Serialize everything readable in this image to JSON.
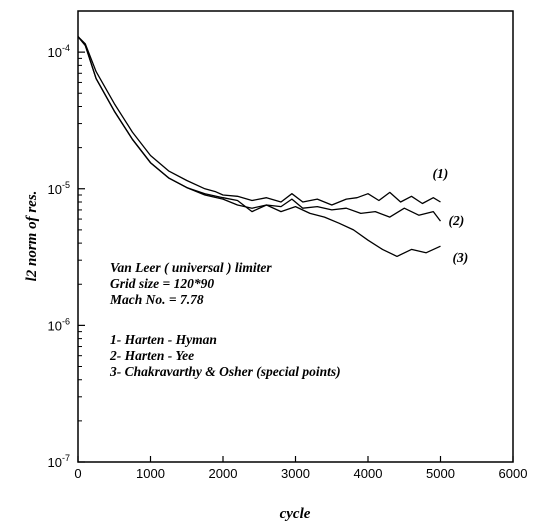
{
  "chart_data": {
    "type": "line",
    "xlabel": "cycle",
    "ylabel": "l2 norm of res.",
    "xlim": [
      0,
      6000
    ],
    "ylim": [
      1e-07,
      0.0002
    ],
    "yscale": "log",
    "x_ticks": [
      0,
      1000,
      2000,
      3000,
      4000,
      5000,
      6000
    ],
    "x_tick_labels": [
      "0",
      "1000",
      "2000",
      "3000",
      "4000",
      "5000",
      "6000"
    ],
    "y_ticks": [
      1e-07,
      1e-06,
      1e-05,
      0.0001
    ],
    "y_tick_labels": [
      {
        "base": "10",
        "exp": "-7"
      },
      {
        "base": "10",
        "exp": "-6"
      },
      {
        "base": "10",
        "exp": "-5"
      },
      {
        "base": "10",
        "exp": "-4"
      }
    ],
    "annotations": [
      "Van Leer ( universal ) limiter",
      "Grid size = 120*90",
      "Mach No. = 7.78",
      "1- Harten - Hyman",
      "2- Harten - Yee",
      "3- Chakravarthy & Osher (special points)"
    ],
    "series": [
      {
        "label": "(1)",
        "x": [
          0,
          100,
          250,
          500,
          750,
          1000,
          1250,
          1500,
          1750,
          1900,
          2000,
          2200,
          2400,
          2600,
          2800,
          2950,
          3100,
          3300,
          3500,
          3700,
          3850,
          4000,
          4150,
          4300,
          4450,
          4600,
          4750,
          4900,
          5000
        ],
        "y": [
          0.00013,
          0.000115,
          7.2e-05,
          4.2e-05,
          2.6e-05,
          1.75e-05,
          1.35e-05,
          1.15e-05,
          1e-05,
          9.5e-06,
          9e-06,
          8.8e-06,
          8.2e-06,
          8.6e-06,
          8e-06,
          9.2e-06,
          8e-06,
          8.4e-06,
          7.6e-06,
          8.4e-06,
          8.6e-06,
          9.2e-06,
          8.2e-06,
          9.4e-06,
          8e-06,
          8.8e-06,
          7.8e-06,
          8.6e-06,
          8e-06
        ]
      },
      {
        "label": "(2)",
        "x": [
          0,
          100,
          250,
          500,
          750,
          1000,
          1250,
          1500,
          1750,
          2000,
          2200,
          2400,
          2600,
          2800,
          2950,
          3100,
          3300,
          3500,
          3700,
          3900,
          4100,
          4300,
          4500,
          4700,
          4900,
          5000
        ],
        "y": [
          0.00013,
          0.000112,
          6.4e-05,
          3.7e-05,
          2.3e-05,
          1.55e-05,
          1.2e-05,
          1.02e-05,
          9.2e-06,
          8.6e-06,
          8.2e-06,
          6.8e-06,
          7.6e-06,
          7.4e-06,
          8.4e-06,
          7.2e-06,
          7.4e-06,
          7e-06,
          7.2e-06,
          6.6e-06,
          6.8e-06,
          6.2e-06,
          7.2e-06,
          6.4e-06,
          6.8e-06,
          5.8e-06
        ]
      },
      {
        "label": "(3)",
        "x": [
          0,
          100,
          250,
          500,
          750,
          1000,
          1250,
          1500,
          1750,
          2000,
          2200,
          2400,
          2600,
          2800,
          3000,
          3200,
          3400,
          3600,
          3800,
          4000,
          4200,
          4400,
          4600,
          4800,
          5000
        ],
        "y": [
          0.00013,
          0.000112,
          6.4e-05,
          3.7e-05,
          2.3e-05,
          1.55e-05,
          1.2e-05,
          1.02e-05,
          9e-06,
          8.4e-06,
          7.6e-06,
          7.2e-06,
          7.6e-06,
          6.8e-06,
          7.4e-06,
          6.6e-06,
          6.2e-06,
          5.6e-06,
          5e-06,
          4.2e-06,
          3.6e-06,
          3.2e-06,
          3.6e-06,
          3.4e-06,
          3.8e-06
        ]
      }
    ]
  }
}
